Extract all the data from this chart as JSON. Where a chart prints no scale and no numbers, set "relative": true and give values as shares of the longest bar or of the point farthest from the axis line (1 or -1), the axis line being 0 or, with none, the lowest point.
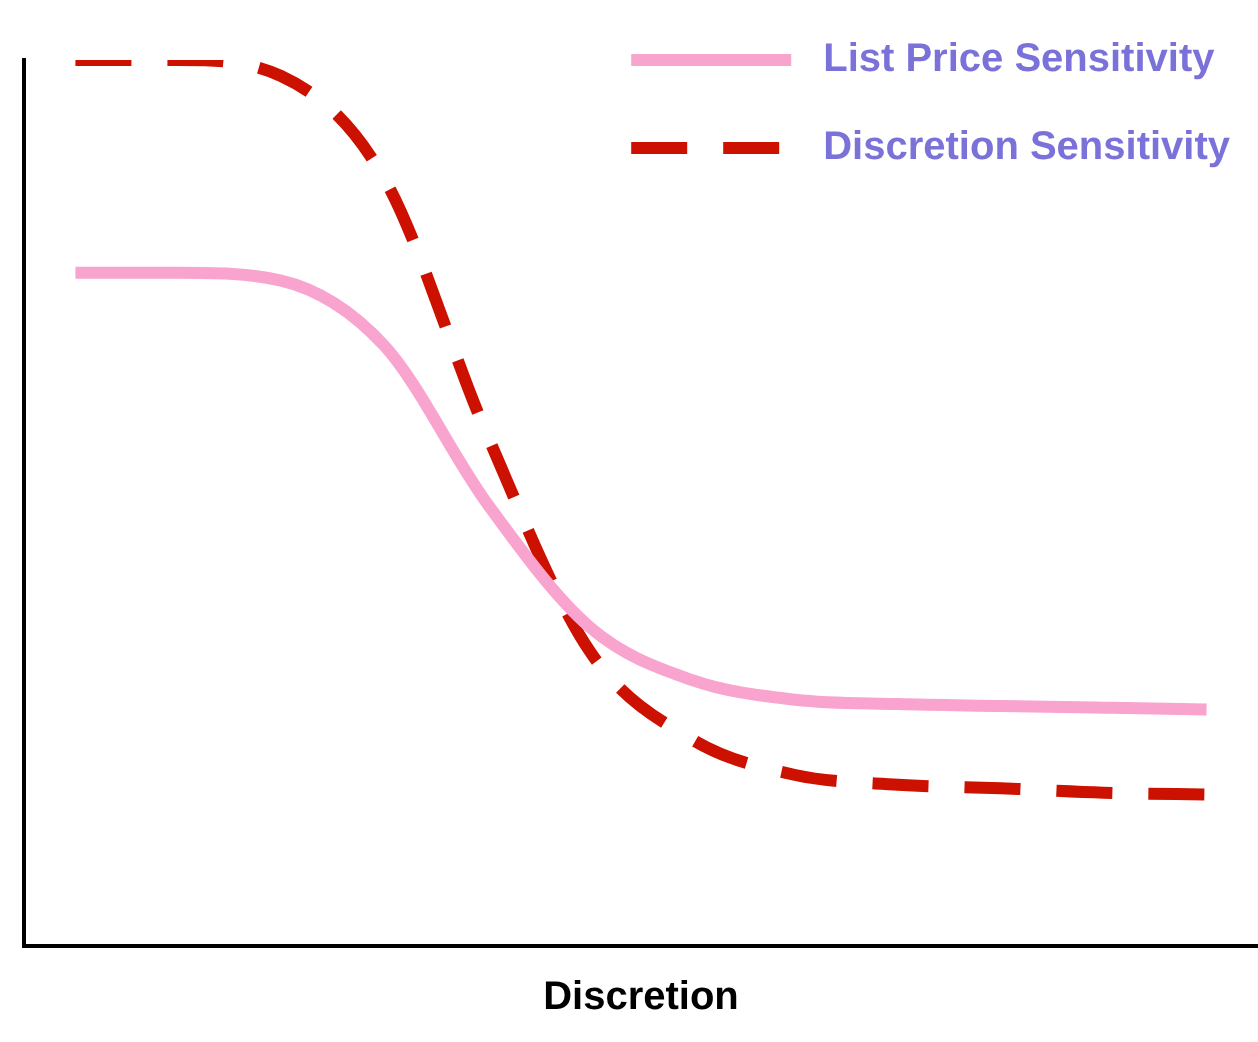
{
  "chart_data": {
    "type": "line",
    "relative": true,
    "xlabel": "Discretion",
    "legend": "top right",
    "grid": false,
    "marker": "none",
    "categories": [
      null,
      null,
      null,
      null,
      null,
      null,
      null,
      null,
      null,
      null,
      null,
      null
    ],
    "series": [
      {
        "name": "List Price Sensitivity",
        "color": "#f9a3cf",
        "line_style": "solid",
        "values": [
          0.76,
          0.76,
          0.751,
          0.678,
          0.5,
          0.36,
          0.3,
          0.278,
          0.273,
          0.271,
          0.269,
          0.267
        ]
      },
      {
        "name": "Discretion Sensitivity",
        "color": "#cc1100",
        "line_style": "dashed",
        "values": [
          1,
          1,
          0.982,
          0.867,
          0.578,
          0.333,
          0.233,
          0.193,
          0.182,
          0.178,
          0.173,
          0.171
        ]
      }
    ]
  }
}
